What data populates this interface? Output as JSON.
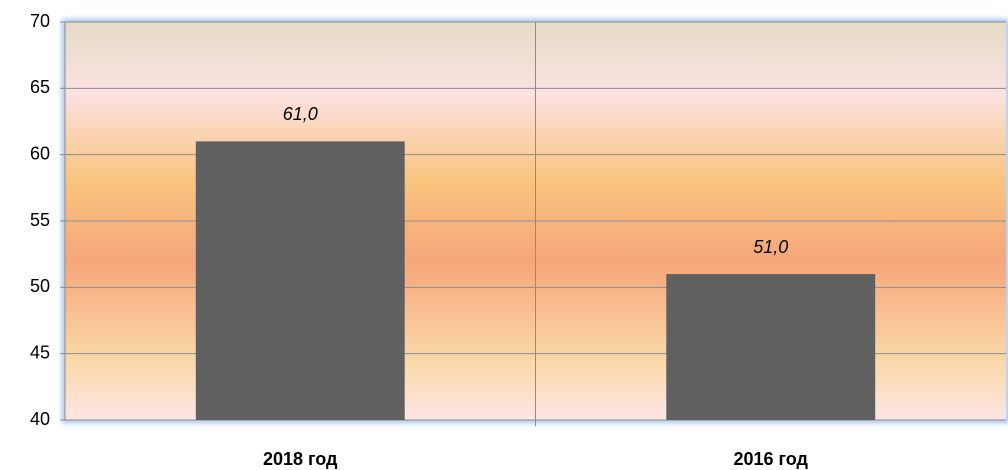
{
  "chart_data": {
    "type": "bar",
    "categories": [
      "2018 год",
      "2016 год"
    ],
    "values": [
      61,
      51
    ],
    "value_labels": [
      "61,0",
      "51,0"
    ],
    "color": "#606060",
    "ylim": [
      40,
      70
    ],
    "yticks": [
      40,
      45,
      50,
      55,
      60,
      65,
      70
    ],
    "grid": true
  }
}
